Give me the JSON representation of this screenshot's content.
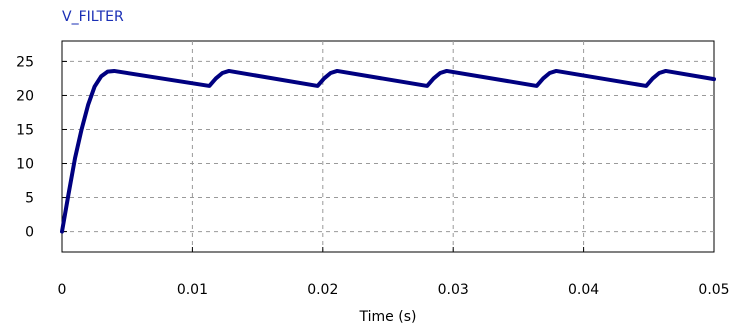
{
  "chart_data": {
    "type": "line",
    "title": "V_FILTER",
    "xlabel": "Time (s)",
    "ylabel": "",
    "xlim": [
      0,
      0.05
    ],
    "ylim": [
      -3,
      28
    ],
    "x_ticks": [
      0,
      0.01,
      0.02,
      0.03,
      0.04,
      0.05
    ],
    "x_tick_labels": [
      "0",
      "0.01",
      "0.02",
      "0.03",
      "0.04",
      "0.05"
    ],
    "y_ticks": [
      0,
      5,
      10,
      15,
      20,
      25
    ],
    "y_tick_labels": [
      "0",
      "5",
      "10",
      "15",
      "20",
      "25"
    ],
    "grid": true,
    "series": [
      {
        "name": "V_FILTER",
        "color": "#000080",
        "x": [
          0,
          0.0005,
          0.001,
          0.0015,
          0.002,
          0.0025,
          0.003,
          0.0035,
          0.004,
          0.0113,
          0.0118,
          0.0123,
          0.0128,
          0.0196,
          0.0201,
          0.0206,
          0.0211,
          0.028,
          0.0285,
          0.029,
          0.0295,
          0.0364,
          0.0369,
          0.0374,
          0.0379,
          0.0448,
          0.0453,
          0.0458,
          0.0463,
          0.05
        ],
        "y": [
          0,
          5.5,
          10.8,
          15.0,
          18.6,
          21.3,
          22.8,
          23.5,
          23.6,
          21.4,
          22.5,
          23.3,
          23.6,
          21.4,
          22.5,
          23.3,
          23.6,
          21.4,
          22.5,
          23.3,
          23.6,
          21.4,
          22.5,
          23.3,
          23.6,
          21.4,
          22.5,
          23.3,
          23.6,
          22.4
        ]
      }
    ]
  },
  "colors": {
    "series_title": "#1a2fb5",
    "line": "#000080",
    "grid": "#9a9a9a",
    "frame": "#000000"
  }
}
